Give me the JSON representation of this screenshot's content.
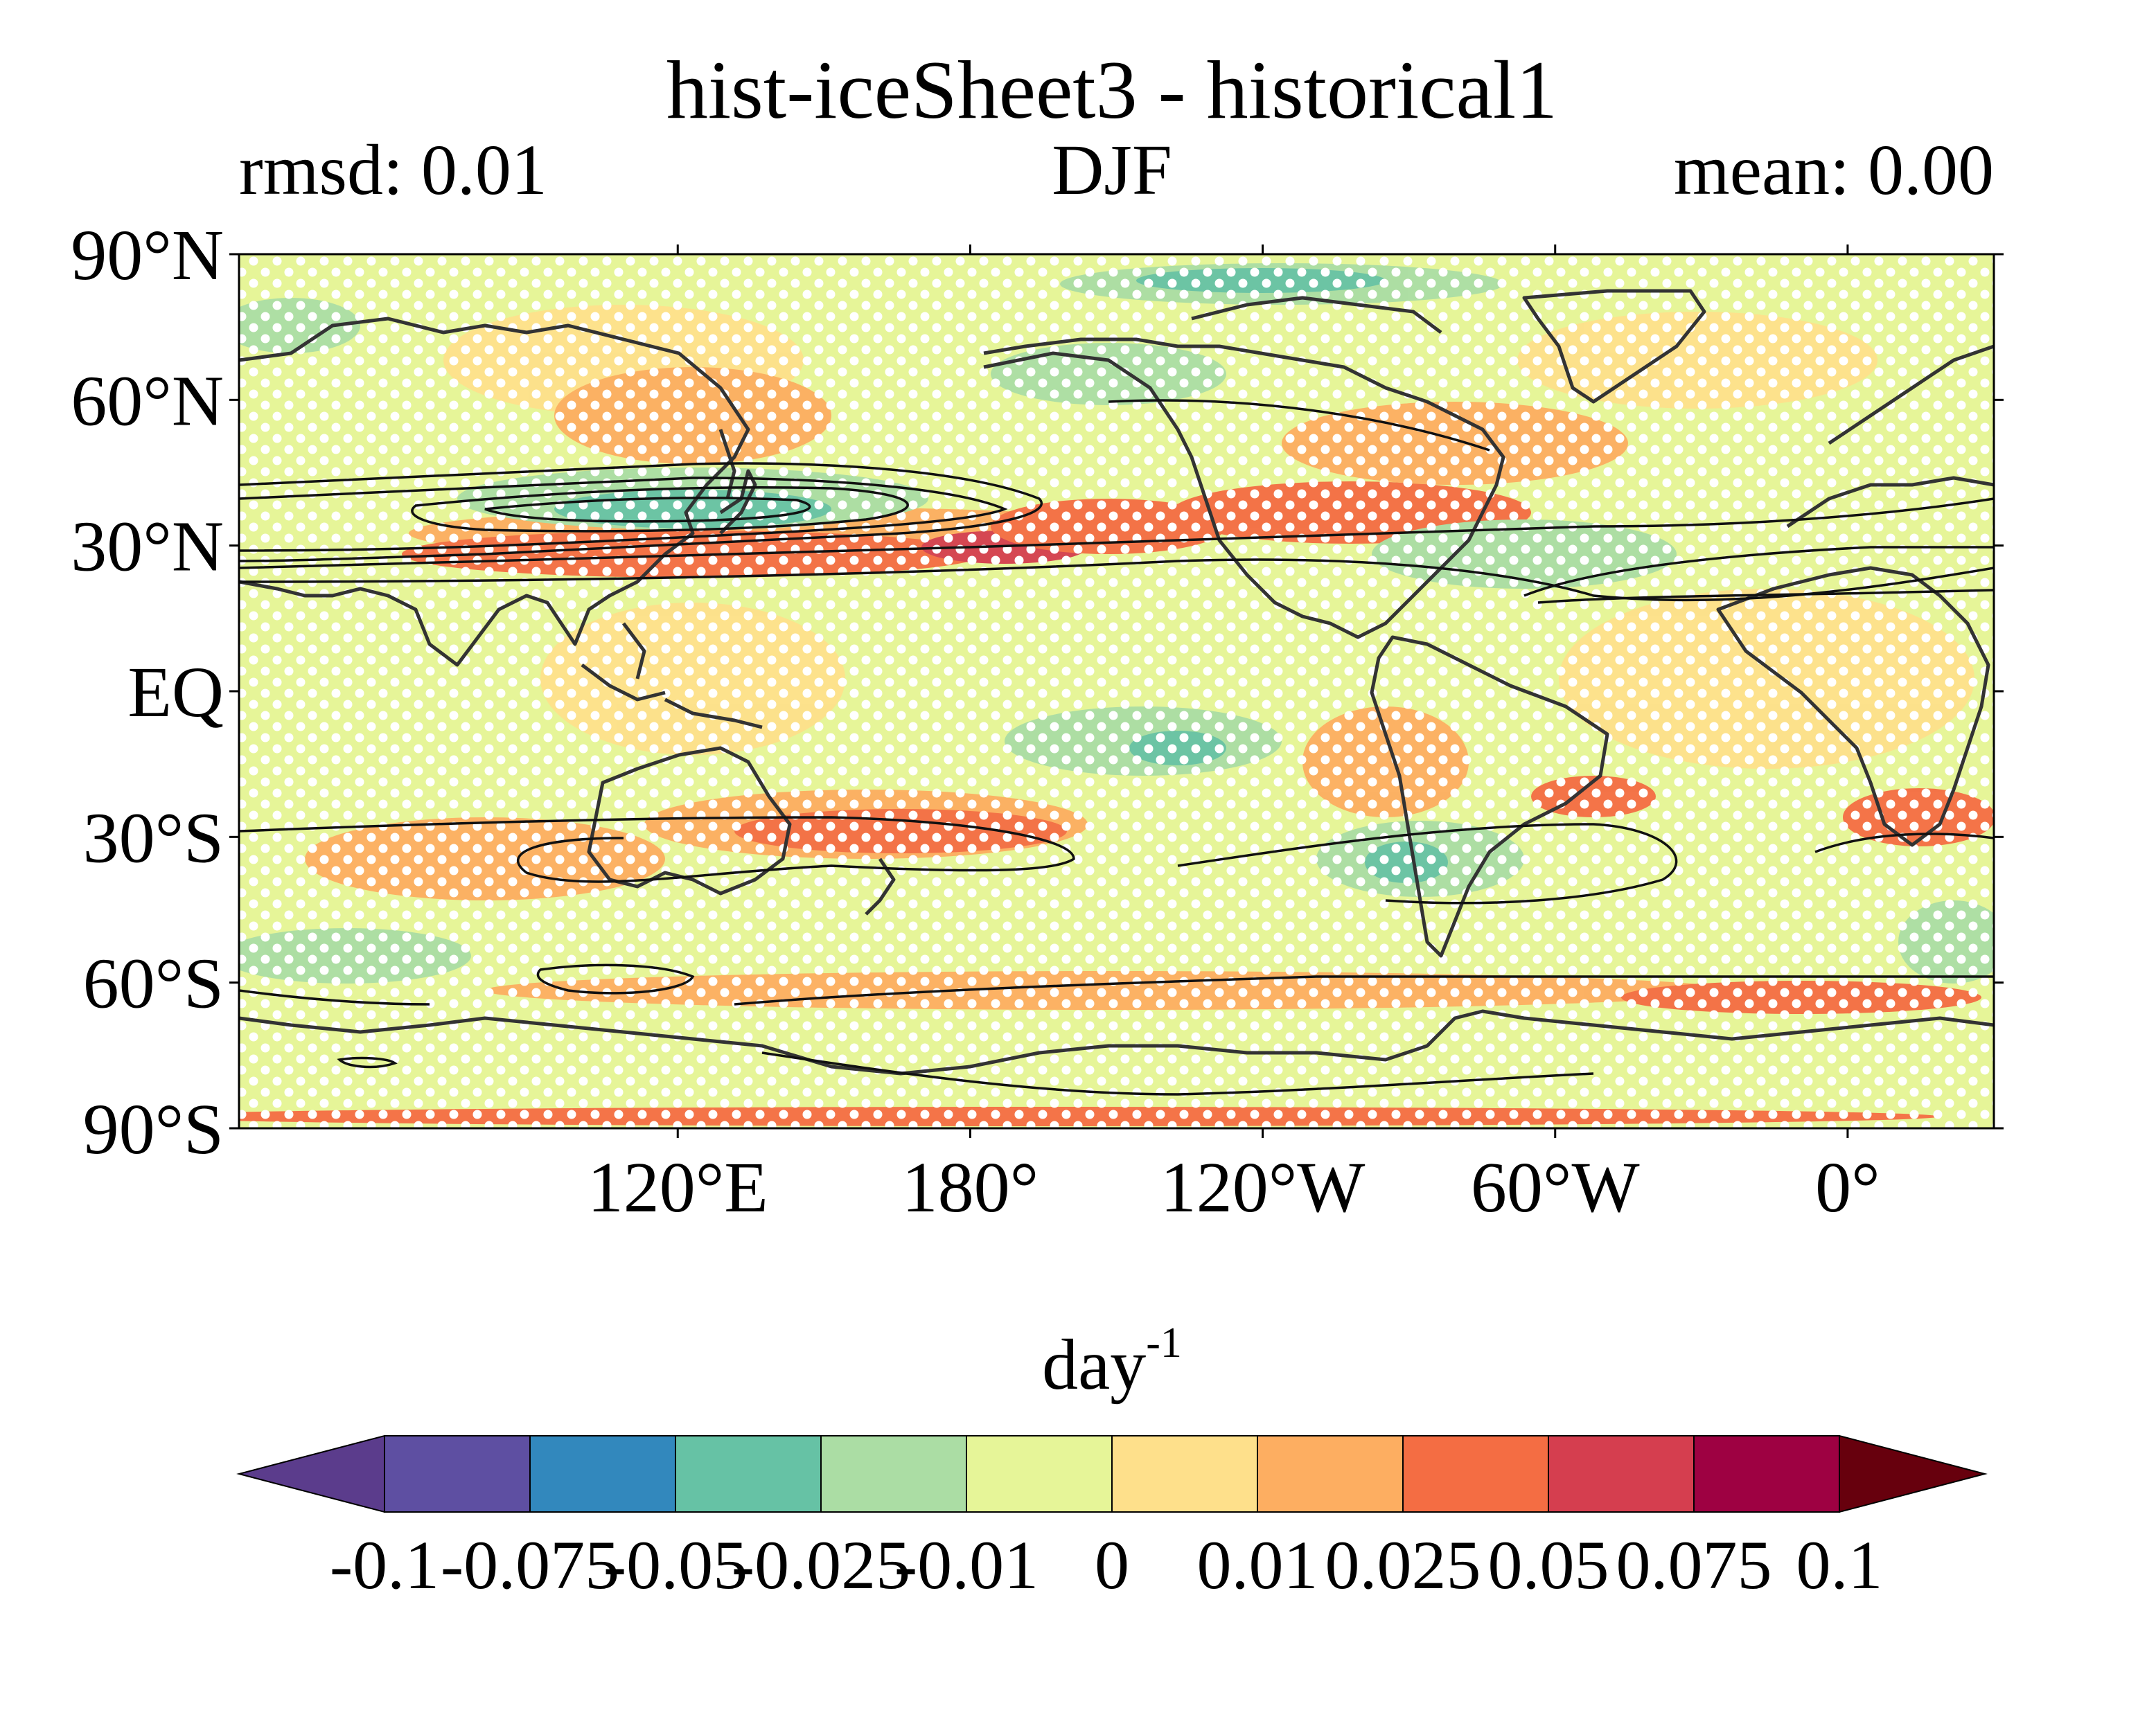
{
  "title": "hist-iceSheet3 - historical1",
  "stats": {
    "left": "rmsd: 0.01",
    "center": "DJF",
    "right": "mean: 0.00"
  },
  "map": {
    "lon_range": [
      30,
      390
    ],
    "lat_range": [
      -90,
      90
    ],
    "lat_ticks": [
      {
        "value": 90,
        "label": "90°N"
      },
      {
        "value": 60,
        "label": "60°N"
      },
      {
        "value": 30,
        "label": "30°N"
      },
      {
        "value": 0,
        "label": "EQ"
      },
      {
        "value": -30,
        "label": "30°S"
      },
      {
        "value": -60,
        "label": "60°S"
      },
      {
        "value": -90,
        "label": "90°S"
      }
    ],
    "lon_ticks": [
      {
        "value": 120,
        "label": "120°E"
      },
      {
        "value": 180,
        "label": "180°"
      },
      {
        "value": 240,
        "label": "120°W"
      },
      {
        "value": 300,
        "label": "60°W"
      },
      {
        "value": 360,
        "label": "0°"
      }
    ],
    "background_color": "#e6f598",
    "stipple_color": "#ffffff",
    "coast_color": "#333333",
    "contour_color": "#111111"
  },
  "colorbar": {
    "unit_base": "day",
    "unit_exp": "-1",
    "levels": [
      "-0.1",
      "-0.075",
      "-0.05",
      "-0.025",
      "-0.01",
      "0",
      "0.01",
      "0.025",
      "0.05",
      "0.075",
      "0.1"
    ],
    "colors": [
      "#5e4fa2",
      "#3288bd",
      "#66c2a5",
      "#abdda4",
      "#e6f598",
      "#fee08b",
      "#fdae61",
      "#f46d43",
      "#d53e4f",
      "#9e0142"
    ],
    "under_color": "#5b3c8c",
    "over_color": "#67000d"
  }
}
